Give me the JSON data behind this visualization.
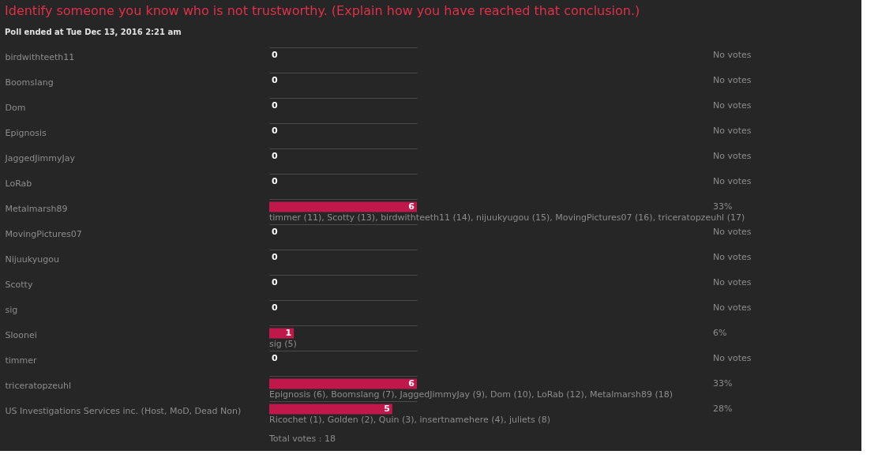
{
  "chart_data": {
    "type": "bar",
    "orientation": "horizontal",
    "data_labels": true,
    "grid": "y",
    "tick_labels": "y",
    "title": "Identify someone you know who is not trustworthy. (Explain how you have reached that conclusion.)",
    "subtitle": "Poll ended at Tue Dec 13, 2016 2:21 am",
    "categories": [
      "birdwithteeth11",
      "Boomslang",
      "Dom",
      "Epignosis",
      "JaggedJimmyJay",
      "LoRab",
      "Metalmarsh89",
      "MovingPictures07",
      "Nijuukyugou",
      "Scotty",
      "sig",
      "Sloonei",
      "timmer",
      "triceratopzeuhl",
      "US Investigations Services inc. (Host, MoD, Dead Non)"
    ],
    "values": [
      0,
      0,
      0,
      0,
      0,
      0,
      6,
      0,
      0,
      0,
      0,
      1,
      0,
      6,
      5
    ],
    "color": "#c0184a",
    "annotations": [
      "No votes",
      "No votes",
      "No votes",
      "No votes",
      "No votes",
      "No votes",
      "33%",
      "No votes",
      "No votes",
      "No votes",
      "No votes",
      "6%",
      "No votes",
      "33%",
      "28%",
      "timmer (11), Scotty (13), birdwithteeth11 (14), nijuukyugou (15), MovingPictures07 (16), triceratopzeuhl (17)",
      "sig (5)",
      "Epignosis (6), Boomslang (7), JaggedJimmyJay (9), Dom (10), LoRab (12), Metalmarsh89 (18)",
      "Ricochet (1), Golden (2), Quin (3), insertnamehere (4), juliets (8)",
      "Total votes : 18"
    ]
  }
}
